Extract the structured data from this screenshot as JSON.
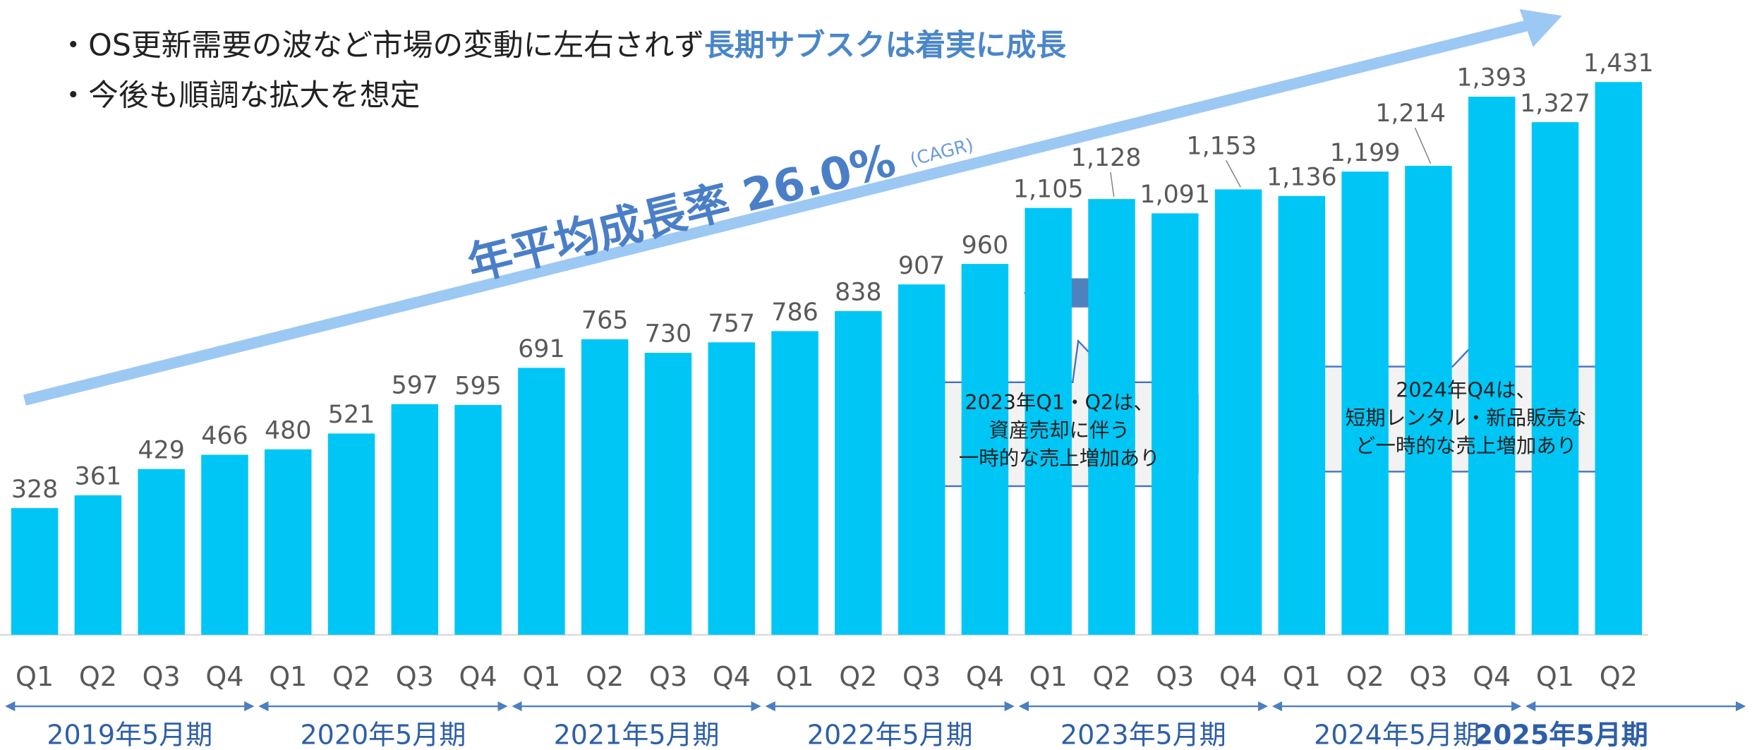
{
  "header": {
    "line1": "・OS更新需要の波など市場の変動に左右されず",
    "line1_emphasis": "長期サブスクは着実に成長",
    "line2": "・今後も順調な拡大を想定"
  },
  "chart_data": {
    "type": "bar",
    "color": "#00c6f6",
    "cagr_label": "年平均成長率 26.0%",
    "cagr_note": "(CAGR)",
    "categories": [
      "Q1",
      "Q2",
      "Q3",
      "Q4",
      "Q1",
      "Q2",
      "Q3",
      "Q4",
      "Q1",
      "Q2",
      "Q3",
      "Q4",
      "Q1",
      "Q2",
      "Q3",
      "Q4",
      "Q1",
      "Q2",
      "Q3",
      "Q4",
      "Q1",
      "Q2",
      "Q3",
      "Q4",
      "Q1",
      "Q2"
    ],
    "values": [
      328,
      361,
      429,
      466,
      480,
      521,
      597,
      595,
      691,
      765,
      730,
      757,
      786,
      838,
      907,
      960,
      1105,
      1128,
      1091,
      1153,
      1136,
      1199,
      1214,
      1393,
      1327,
      1431
    ],
    "value_labels": [
      "328",
      "361",
      "429",
      "466",
      "480",
      "521",
      "597",
      "595",
      "691",
      "765",
      "730",
      "757",
      "786",
      "838",
      "907",
      "960",
      "1,105",
      "1,128",
      "1,091",
      "1,153",
      "1,136",
      "1,199",
      "1,214",
      "1,393",
      "1,327",
      "1,431"
    ],
    "groups": [
      "2019年5月期",
      "2020年5月期",
      "2021年5月期",
      "2022年5月期",
      "2023年5月期",
      "2024年5月期",
      "2025年5月期"
    ],
    "ylim": [
      0,
      1640
    ],
    "annotations": [
      {
        "lines": [
          "2023年Q1・Q2は、",
          "資産売却に伴う",
          "一時的な売上増加あり"
        ]
      },
      {
        "lines": [
          "2024年Q4は、",
          "短期レンタル・新品販売な",
          "ど一時的な売上増加あり"
        ]
      }
    ]
  }
}
